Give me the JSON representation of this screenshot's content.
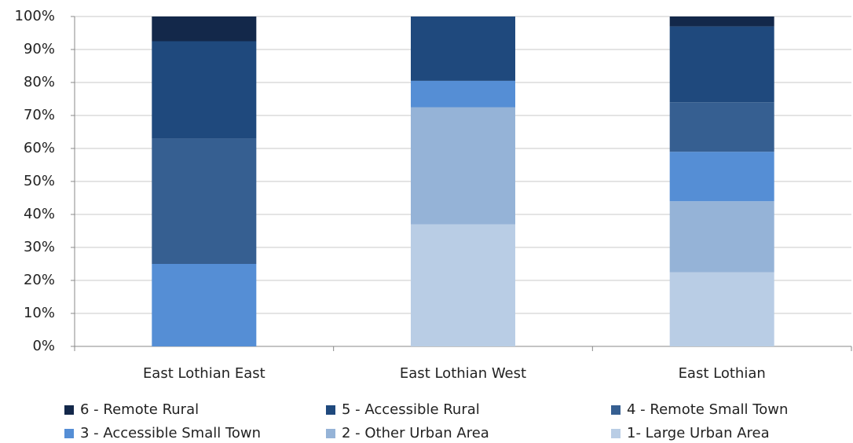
{
  "chart_data": {
    "type": "stacked-bar",
    "categories": [
      "East Lothian East",
      "East Lothian West",
      "East Lothian"
    ],
    "series": [
      {
        "name": "6 - Remote Rural",
        "color": "#13284a",
        "values": [
          7.5,
          0,
          3
        ]
      },
      {
        "name": "5 - Accessible Rural",
        "color": "#1f497d",
        "values": [
          29.5,
          19.5,
          23
        ]
      },
      {
        "name": "4 - Remote Small Town",
        "color": "#365f91",
        "values": [
          38,
          0,
          15
        ]
      },
      {
        "name": "3 - Accessible Small Town",
        "color": "#558ed5",
        "values": [
          25,
          8,
          15
        ]
      },
      {
        "name": "2 - Other Urban Area",
        "color": "#95b3d7",
        "values": [
          0,
          35.5,
          21.5
        ]
      },
      {
        "name": "1- Large Urban Area",
        "color": "#b9cde5",
        "values": [
          0,
          37,
          22.5
        ]
      }
    ],
    "ylim": [
      0,
      100
    ],
    "yticks": [
      {
        "value": 0,
        "label": "0%"
      },
      {
        "value": 10,
        "label": "10%"
      },
      {
        "value": 20,
        "label": "20%"
      },
      {
        "value": 30,
        "label": "30%"
      },
      {
        "value": 40,
        "label": "40%"
      },
      {
        "value": 50,
        "label": "50%"
      },
      {
        "value": 60,
        "label": "60%"
      },
      {
        "value": 70,
        "label": "70%"
      },
      {
        "value": 80,
        "label": "80%"
      },
      {
        "value": 90,
        "label": "90%"
      },
      {
        "value": 100,
        "label": "100%"
      }
    ],
    "grid": true
  }
}
